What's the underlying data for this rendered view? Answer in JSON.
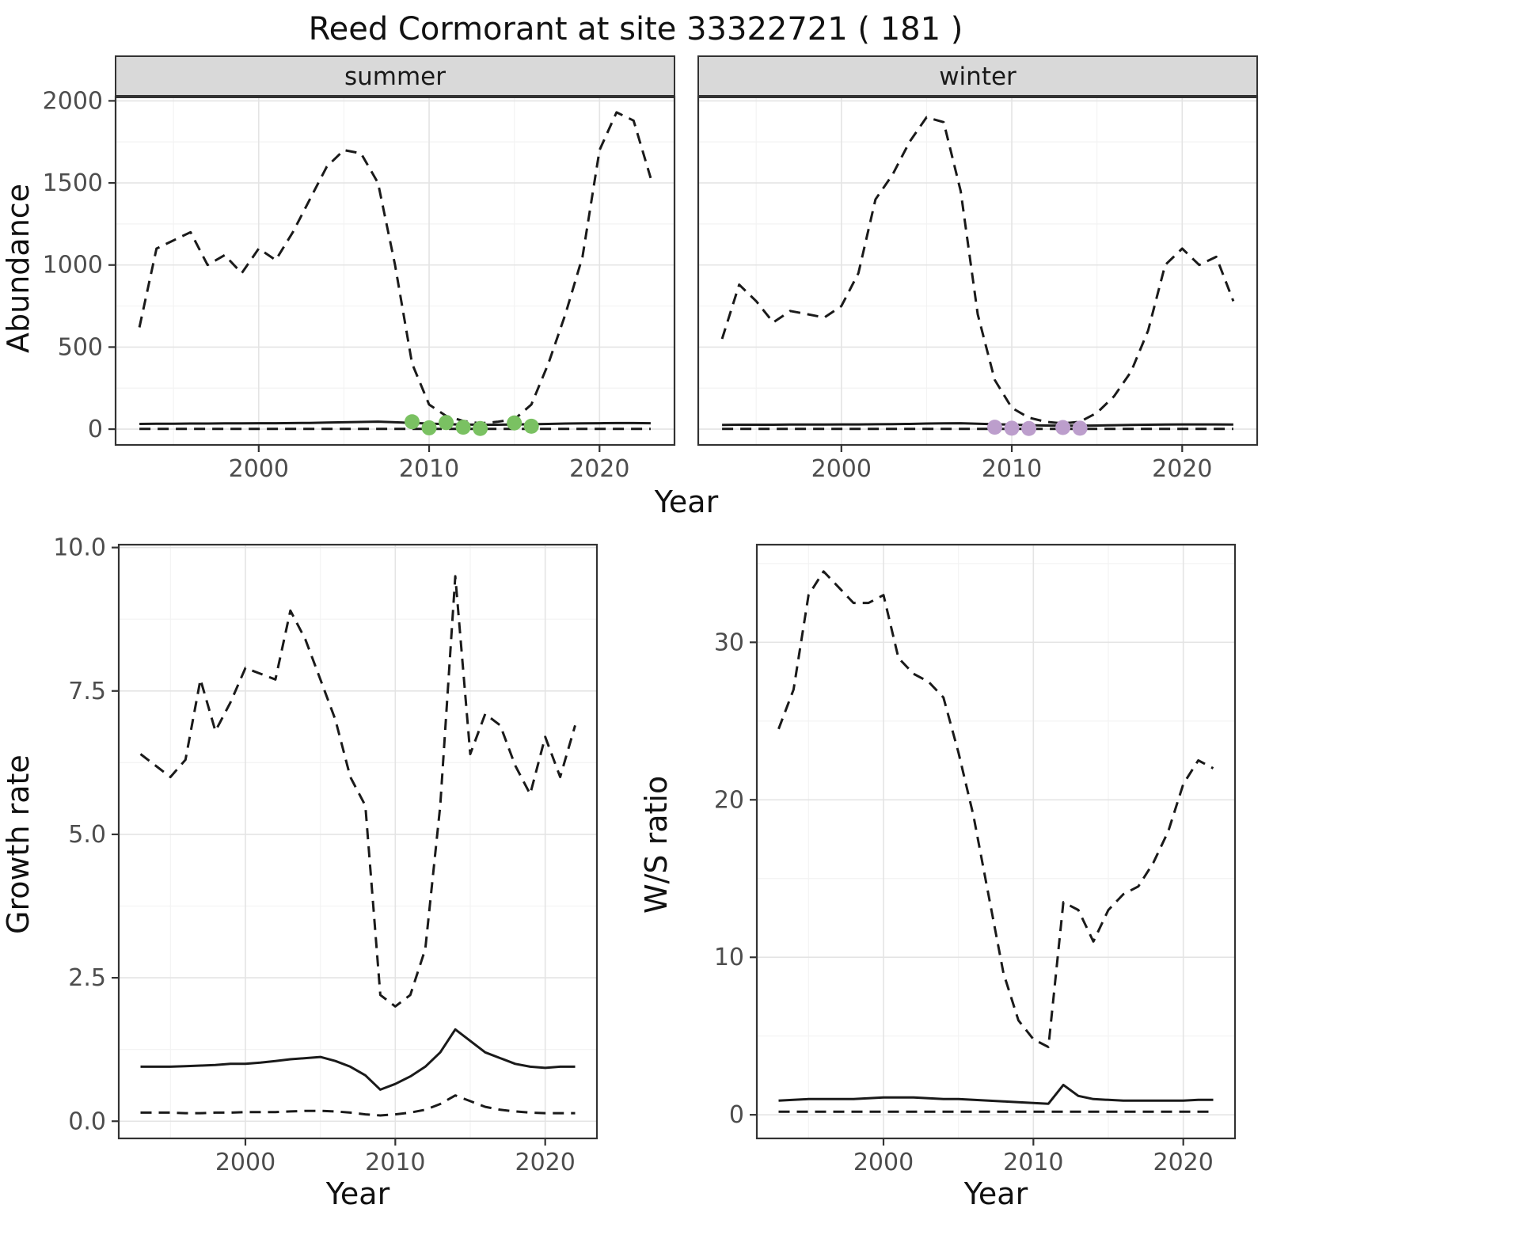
{
  "title": "Reed Cormorant at site 33322721 ( 181 )",
  "colors": {
    "line": "#1a1a1a",
    "summer_points": "#7AC162",
    "winter_points": "#BC9ECC",
    "strip_bg": "#D9D9D9",
    "grid_major": "#e4e4e4",
    "grid_minor": "#f3f3f3",
    "panel_border": "#333333",
    "tick_text": "#4d4d4d"
  },
  "chart_data": [
    {
      "id": "abundance",
      "type": "line",
      "xlabel": "Year",
      "ylabel": "Abundance",
      "xlim": [
        1991.6,
        2024.4
      ],
      "ylim": [
        -96,
        2026
      ],
      "xticks": [
        2000,
        2010,
        2020
      ],
      "xtick_labels": [
        "2000",
        "2010",
        "2020"
      ],
      "yticks": [
        0,
        500,
        1000,
        1500,
        2000
      ],
      "ytick_labels": [
        "0",
        "500",
        "1000",
        "1500",
        "2000"
      ],
      "x": [
        1993,
        1994,
        1995,
        1996,
        1997,
        1998,
        1999,
        2000,
        2001,
        2002,
        2003,
        2004,
        2005,
        2006,
        2007,
        2008,
        2009,
        2010,
        2011,
        2012,
        2013,
        2014,
        2015,
        2016,
        2017,
        2018,
        2019,
        2020,
        2021,
        2022,
        2023
      ],
      "facets": [
        {
          "label": "summer",
          "series": [
            {
              "name": "upper-ci",
              "style": "dashed",
              "values": [
                620,
                1100,
                1150,
                1200,
                1000,
                1060,
                950,
                1100,
                1030,
                1200,
                1400,
                1600,
                1700,
                1680,
                1500,
                1000,
                400,
                150,
                80,
                50,
                35,
                45,
                60,
                150,
                400,
                700,
                1050,
                1700,
                1930,
                1880,
                1530
              ]
            },
            {
              "name": "median",
              "style": "solid",
              "values": [
                32,
                33,
                33,
                34,
                34,
                35,
                35,
                36,
                36,
                37,
                38,
                40,
                42,
                44,
                46,
                42,
                38,
                34,
                30,
                28,
                27,
                27,
                28,
                30,
                32,
                34,
                35,
                36,
                37,
                37,
                36
              ]
            },
            {
              "name": "lower-ci",
              "style": "dashed",
              "values": [
                2,
                2,
                2,
                2,
                2,
                2,
                2,
                2,
                2,
                2,
                2,
                2,
                2,
                2,
                2,
                2,
                2,
                2,
                2,
                2,
                2,
                2,
                2,
                2,
                2,
                2,
                2,
                2,
                2,
                2,
                2
              ]
            }
          ],
          "points": {
            "name": "observed-counts-summer",
            "color": "#7AC162",
            "data": [
              [
                2009,
                45
              ],
              [
                2010,
                8
              ],
              [
                2011,
                40
              ],
              [
                2012,
                12
              ],
              [
                2013,
                4
              ],
              [
                2015,
                38
              ],
              [
                2016,
                18
              ]
            ]
          }
        },
        {
          "label": "winter",
          "series": [
            {
              "name": "upper-ci",
              "style": "dashed",
              "values": [
                550,
                880,
                780,
                650,
                720,
                700,
                680,
                750,
                950,
                1400,
                1550,
                1750,
                1900,
                1870,
                1450,
                700,
                300,
                130,
                70,
                45,
                35,
                45,
                100,
                200,
                350,
                600,
                1000,
                1100,
                1000,
                1050,
                780
              ]
            },
            {
              "name": "median",
              "style": "solid",
              "values": [
                26,
                27,
                27,
                27,
                28,
                28,
                28,
                29,
                29,
                30,
                31,
                32,
                34,
                35,
                36,
                33,
                30,
                27,
                24,
                22,
                21,
                21,
                22,
                24,
                26,
                27,
                28,
                29,
                29,
                29,
                28
              ]
            },
            {
              "name": "lower-ci",
              "style": "dashed",
              "values": [
                2,
                2,
                2,
                2,
                2,
                2,
                2,
                2,
                2,
                2,
                2,
                2,
                2,
                2,
                2,
                2,
                2,
                2,
                2,
                2,
                2,
                2,
                2,
                2,
                2,
                2,
                2,
                2,
                2,
                2,
                2
              ]
            }
          ],
          "points": {
            "name": "observed-counts-winter",
            "color": "#BC9ECC",
            "data": [
              [
                2009,
                12
              ],
              [
                2010,
                6
              ],
              [
                2011,
                4
              ],
              [
                2013,
                10
              ],
              [
                2014,
                6
              ]
            ]
          }
        }
      ]
    },
    {
      "id": "growth",
      "type": "line",
      "xlabel": "Year",
      "ylabel": "Growth rate",
      "xlim": [
        1991.55,
        2023.45
      ],
      "ylim": [
        -0.3,
        10.05
      ],
      "xticks": [
        2000,
        2010,
        2020
      ],
      "xtick_labels": [
        "2000",
        "2010",
        "2020"
      ],
      "yticks": [
        0,
        2.5,
        5,
        7.5,
        10
      ],
      "ytick_labels": [
        "0.0",
        "2.5",
        "5.0",
        "7.5",
        "10.0"
      ],
      "x": [
        1993,
        1994,
        1995,
        1996,
        1997,
        1998,
        1999,
        2000,
        2001,
        2002,
        2003,
        2004,
        2005,
        2006,
        2007,
        2008,
        2009,
        2010,
        2011,
        2012,
        2013,
        2014,
        2015,
        2016,
        2017,
        2018,
        2019,
        2020,
        2021,
        2022
      ],
      "facets": [
        {
          "label": "",
          "series": [
            {
              "name": "upper-ci",
              "style": "dashed",
              "values": [
                6.4,
                6.2,
                6.0,
                6.3,
                7.7,
                6.8,
                7.3,
                7.9,
                7.8,
                7.7,
                8.9,
                8.4,
                7.7,
                7.0,
                6.0,
                5.5,
                2.2,
                2.0,
                2.2,
                3.0,
                5.5,
                9.5,
                6.4,
                7.1,
                6.9,
                6.2,
                5.7,
                6.7,
                6.0,
                6.9
              ]
            },
            {
              "name": "median",
              "style": "solid",
              "values": [
                0.95,
                0.95,
                0.95,
                0.96,
                0.97,
                0.98,
                1.0,
                1.0,
                1.02,
                1.05,
                1.08,
                1.1,
                1.12,
                1.05,
                0.95,
                0.8,
                0.55,
                0.65,
                0.78,
                0.95,
                1.2,
                1.6,
                1.4,
                1.2,
                1.1,
                1.0,
                0.95,
                0.93,
                0.95,
                0.95
              ]
            },
            {
              "name": "lower-ci",
              "style": "dashed",
              "values": [
                0.15,
                0.15,
                0.15,
                0.14,
                0.14,
                0.15,
                0.15,
                0.16,
                0.16,
                0.16,
                0.17,
                0.18,
                0.18,
                0.17,
                0.15,
                0.12,
                0.1,
                0.12,
                0.15,
                0.2,
                0.3,
                0.45,
                0.35,
                0.25,
                0.2,
                0.17,
                0.15,
                0.14,
                0.14,
                0.14
              ]
            }
          ]
        }
      ]
    },
    {
      "id": "ws",
      "type": "line",
      "xlabel": "Year",
      "ylabel": "W/S ratio",
      "xlim": [
        1991.55,
        2023.45
      ],
      "ylim": [
        -1.5,
        36.2
      ],
      "xticks": [
        2000,
        2010,
        2020
      ],
      "xtick_labels": [
        "2000",
        "2010",
        "2020"
      ],
      "yticks": [
        0,
        10,
        20,
        30
      ],
      "ytick_labels": [
        "0",
        "10",
        "20",
        "30"
      ],
      "x": [
        1993,
        1994,
        1995,
        1996,
        1997,
        1998,
        1999,
        2000,
        2001,
        2002,
        2003,
        2004,
        2005,
        2006,
        2007,
        2008,
        2009,
        2010,
        2011,
        2012,
        2013,
        2014,
        2015,
        2016,
        2017,
        2018,
        2019,
        2020,
        2021,
        2022
      ],
      "facets": [
        {
          "label": "",
          "series": [
            {
              "name": "upper-ci",
              "style": "dashed",
              "values": [
                24.5,
                27,
                33,
                34.5,
                33.5,
                32.5,
                32.5,
                33,
                29,
                28,
                27.5,
                26.5,
                23,
                19,
                14,
                9,
                6,
                4.8,
                4.3,
                13.5,
                13,
                11,
                13,
                14,
                14.5,
                16,
                18,
                21,
                22.5,
                22
              ]
            },
            {
              "name": "median",
              "style": "solid",
              "values": [
                0.9,
                0.95,
                1.0,
                1.0,
                1.0,
                1.0,
                1.05,
                1.1,
                1.1,
                1.1,
                1.05,
                1.0,
                1.0,
                0.95,
                0.9,
                0.85,
                0.8,
                0.75,
                0.7,
                1.9,
                1.2,
                1.0,
                0.95,
                0.9,
                0.9,
                0.9,
                0.9,
                0.9,
                0.95,
                0.95
              ]
            },
            {
              "name": "lower-ci",
              "style": "dashed",
              "values": [
                0.2,
                0.2,
                0.2,
                0.2,
                0.2,
                0.2,
                0.2,
                0.2,
                0.2,
                0.2,
                0.2,
                0.2,
                0.2,
                0.2,
                0.2,
                0.2,
                0.2,
                0.2,
                0.2,
                0.2,
                0.2,
                0.2,
                0.2,
                0.2,
                0.2,
                0.2,
                0.2,
                0.2,
                0.2,
                0.2
              ]
            }
          ]
        }
      ]
    }
  ]
}
